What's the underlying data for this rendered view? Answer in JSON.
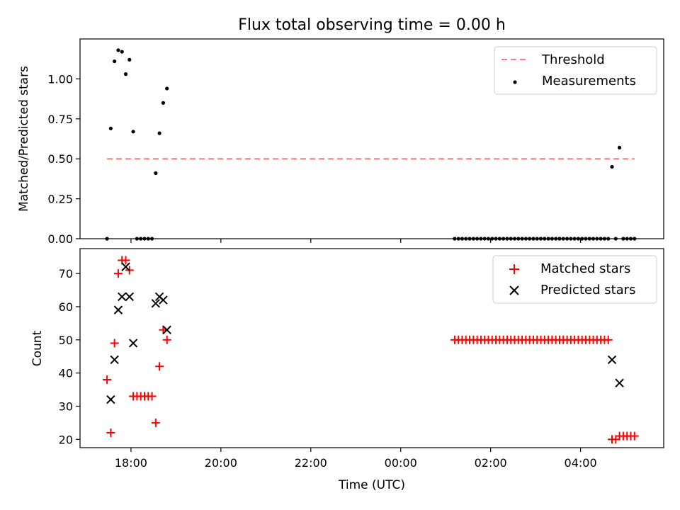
{
  "title": "Flux total observing time = 0.00 h",
  "chart_data": [
    {
      "type": "scatter",
      "panel": "top",
      "ylabel": "Matched/Predicted stars",
      "xlabel": "",
      "ylim": [
        0,
        1.25
      ],
      "yticks": [
        "0.00",
        "0.25",
        "0.50",
        "0.75",
        "1.00"
      ],
      "legend_position": "top-right",
      "threshold": {
        "name": "Threshold",
        "value": 0.5,
        "x_start": "17:28",
        "x_end": "05:12",
        "color": "#ff7a7a"
      },
      "series": [
        {
          "name": "Measurements",
          "color": "#000000",
          "points": [
            [
              "17:28",
              0.0
            ],
            [
              "17:33",
              0.69
            ],
            [
              "17:38",
              1.11
            ],
            [
              "17:43",
              1.18
            ],
            [
              "17:48",
              1.17
            ],
            [
              "17:53",
              1.03
            ],
            [
              "17:58",
              1.12
            ],
            [
              "18:03",
              0.67
            ],
            [
              "18:08",
              0.0
            ],
            [
              "18:13",
              0.0
            ],
            [
              "18:18",
              0.0
            ],
            [
              "18:23",
              0.0
            ],
            [
              "18:28",
              0.0
            ],
            [
              "18:33",
              0.41
            ],
            [
              "18:38",
              0.66
            ],
            [
              "18:43",
              0.85
            ],
            [
              "18:48",
              0.94
            ],
            [
              "01:12",
              0.0
            ],
            [
              "01:17",
              0.0
            ],
            [
              "01:22",
              0.0
            ],
            [
              "01:27",
              0.0
            ],
            [
              "01:32",
              0.0
            ],
            [
              "01:37",
              0.0
            ],
            [
              "01:42",
              0.0
            ],
            [
              "01:47",
              0.0
            ],
            [
              "01:52",
              0.0
            ],
            [
              "01:57",
              0.0
            ],
            [
              "02:02",
              0.0
            ],
            [
              "02:07",
              0.0
            ],
            [
              "02:12",
              0.0
            ],
            [
              "02:17",
              0.0
            ],
            [
              "02:22",
              0.0
            ],
            [
              "02:27",
              0.0
            ],
            [
              "02:32",
              0.0
            ],
            [
              "02:37",
              0.0
            ],
            [
              "02:42",
              0.0
            ],
            [
              "02:47",
              0.0
            ],
            [
              "02:52",
              0.0
            ],
            [
              "02:57",
              0.0
            ],
            [
              "03:02",
              0.0
            ],
            [
              "03:07",
              0.0
            ],
            [
              "03:12",
              0.0
            ],
            [
              "03:17",
              0.0
            ],
            [
              "03:22",
              0.0
            ],
            [
              "03:27",
              0.0
            ],
            [
              "03:32",
              0.0
            ],
            [
              "03:37",
              0.0
            ],
            [
              "03:42",
              0.0
            ],
            [
              "03:47",
              0.0
            ],
            [
              "03:52",
              0.0
            ],
            [
              "03:57",
              0.0
            ],
            [
              "04:02",
              0.0
            ],
            [
              "04:07",
              0.0
            ],
            [
              "04:12",
              0.0
            ],
            [
              "04:17",
              0.0
            ],
            [
              "04:22",
              0.0
            ],
            [
              "04:27",
              0.0
            ],
            [
              "04:32",
              0.0
            ],
            [
              "04:37",
              0.0
            ],
            [
              "04:42",
              0.45
            ],
            [
              "04:47",
              0.0
            ],
            [
              "04:52",
              0.57
            ],
            [
              "04:57",
              0.0
            ],
            [
              "05:02",
              0.0
            ],
            [
              "05:07",
              0.0
            ],
            [
              "05:12",
              0.0
            ]
          ]
        }
      ]
    },
    {
      "type": "scatter",
      "panel": "bottom",
      "xlabel": "Time (UTC)",
      "ylabel": "Count",
      "ylim": [
        17.5,
        77.5
      ],
      "yticks": [
        "20",
        "30",
        "40",
        "50",
        "60",
        "70"
      ],
      "xlim": [
        "16:52",
        "05:51"
      ],
      "xticks": [
        "18:00",
        "20:00",
        "22:00",
        "00:00",
        "02:00",
        "04:00"
      ],
      "legend_position": "top-right",
      "series": [
        {
          "name": "Matched stars",
          "marker": "+",
          "color": "#ff0000",
          "points": [
            [
              "17:28",
              38
            ],
            [
              "17:33",
              22
            ],
            [
              "17:38",
              49
            ],
            [
              "17:43",
              70
            ],
            [
              "17:48",
              74
            ],
            [
              "17:53",
              74
            ],
            [
              "17:58",
              71
            ],
            [
              "18:03",
              33
            ],
            [
              "18:08",
              33
            ],
            [
              "18:13",
              33
            ],
            [
              "18:18",
              33
            ],
            [
              "18:23",
              33
            ],
            [
              "18:28",
              33
            ],
            [
              "18:33",
              25
            ],
            [
              "18:38",
              42
            ],
            [
              "18:43",
              53
            ],
            [
              "18:48",
              50
            ],
            [
              "01:12",
              50
            ],
            [
              "01:17",
              50
            ],
            [
              "01:22",
              50
            ],
            [
              "01:27",
              50
            ],
            [
              "01:32",
              50
            ],
            [
              "01:37",
              50
            ],
            [
              "01:42",
              50
            ],
            [
              "01:47",
              50
            ],
            [
              "01:52",
              50
            ],
            [
              "01:57",
              50
            ],
            [
              "02:02",
              50
            ],
            [
              "02:07",
              50
            ],
            [
              "02:12",
              50
            ],
            [
              "02:17",
              50
            ],
            [
              "02:22",
              50
            ],
            [
              "02:27",
              50
            ],
            [
              "02:32",
              50
            ],
            [
              "02:37",
              50
            ],
            [
              "02:42",
              50
            ],
            [
              "02:47",
              50
            ],
            [
              "02:52",
              50
            ],
            [
              "02:57",
              50
            ],
            [
              "03:02",
              50
            ],
            [
              "03:07",
              50
            ],
            [
              "03:12",
              50
            ],
            [
              "03:17",
              50
            ],
            [
              "03:22",
              50
            ],
            [
              "03:27",
              50
            ],
            [
              "03:32",
              50
            ],
            [
              "03:37",
              50
            ],
            [
              "03:42",
              50
            ],
            [
              "03:47",
              50
            ],
            [
              "03:52",
              50
            ],
            [
              "03:57",
              50
            ],
            [
              "04:02",
              50
            ],
            [
              "04:07",
              50
            ],
            [
              "04:12",
              50
            ],
            [
              "04:17",
              50
            ],
            [
              "04:22",
              50
            ],
            [
              "04:27",
              50
            ],
            [
              "04:32",
              50
            ],
            [
              "04:37",
              50
            ],
            [
              "04:42",
              20
            ],
            [
              "04:47",
              20
            ],
            [
              "04:52",
              21
            ],
            [
              "04:57",
              21
            ],
            [
              "05:02",
              21
            ],
            [
              "05:07",
              21
            ],
            [
              "05:12",
              21
            ]
          ]
        },
        {
          "name": "Predicted stars",
          "marker": "x",
          "color": "#000000",
          "points": [
            [
              "17:33",
              32
            ],
            [
              "17:38",
              44
            ],
            [
              "17:43",
              59
            ],
            [
              "17:48",
              63
            ],
            [
              "17:53",
              72
            ],
            [
              "17:58",
              63
            ],
            [
              "18:03",
              49
            ],
            [
              "18:33",
              61
            ],
            [
              "18:38",
              63
            ],
            [
              "18:43",
              62
            ],
            [
              "18:48",
              53
            ],
            [
              "04:42",
              44
            ],
            [
              "04:52",
              37
            ]
          ]
        }
      ]
    }
  ]
}
